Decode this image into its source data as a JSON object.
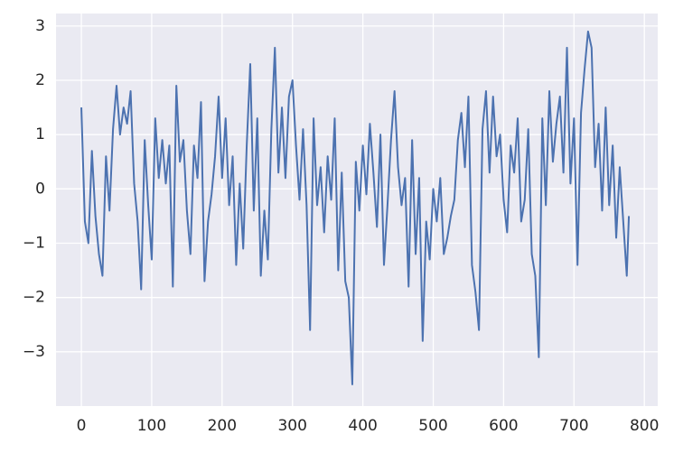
{
  "chart_data": {
    "type": "line",
    "x": [
      0,
      5,
      10,
      15,
      20,
      25,
      30,
      35,
      40,
      45,
      50,
      55,
      60,
      65,
      70,
      75,
      80,
      85,
      90,
      95,
      100,
      105,
      110,
      115,
      120,
      125,
      130,
      135,
      140,
      145,
      150,
      155,
      160,
      165,
      170,
      175,
      180,
      185,
      190,
      195,
      200,
      205,
      210,
      215,
      220,
      225,
      230,
      235,
      240,
      245,
      250,
      255,
      260,
      265,
      270,
      275,
      280,
      285,
      290,
      295,
      300,
      305,
      310,
      315,
      320,
      325,
      330,
      335,
      340,
      345,
      350,
      355,
      360,
      365,
      370,
      375,
      380,
      385,
      390,
      395,
      400,
      405,
      410,
      415,
      420,
      425,
      430,
      435,
      440,
      445,
      450,
      455,
      460,
      465,
      470,
      475,
      480,
      485,
      490,
      495,
      500,
      505,
      510,
      515,
      520,
      525,
      530,
      535,
      540,
      545,
      550,
      555,
      560,
      565,
      570,
      575,
      580,
      585,
      590,
      595,
      600,
      605,
      610,
      615,
      620,
      625,
      630,
      635,
      640,
      645,
      650,
      655,
      660,
      665,
      670,
      675,
      680,
      685,
      690,
      695,
      700,
      705,
      710,
      715,
      720,
      725,
      730,
      735,
      740,
      745,
      750,
      755,
      760,
      765,
      770,
      775,
      778
    ],
    "series": [
      {
        "color": "#4c72b0",
        "values": [
          1.5,
          -0.6,
          -1.0,
          0.7,
          -0.5,
          -1.2,
          -1.6,
          0.6,
          -0.4,
          1.1,
          1.9,
          1.0,
          1.5,
          1.2,
          1.8,
          0.1,
          -0.6,
          -1.85,
          0.9,
          -0.3,
          -1.3,
          1.3,
          0.2,
          0.9,
          0.1,
          0.8,
          -1.8,
          1.9,
          0.5,
          0.9,
          -0.4,
          -1.2,
          0.8,
          0.2,
          1.6,
          -1.7,
          -0.6,
          -0.1,
          0.6,
          1.7,
          0.2,
          1.3,
          -0.3,
          0.6,
          -1.4,
          0.1,
          -1.1,
          0.8,
          2.3,
          -0.4,
          1.3,
          -1.6,
          -0.4,
          -1.3,
          1.1,
          2.6,
          0.3,
          1.5,
          0.2,
          1.7,
          2.0,
          0.8,
          -0.2,
          1.1,
          -0.3,
          -2.6,
          1.3,
          -0.3,
          0.4,
          -0.8,
          0.6,
          -0.2,
          1.3,
          -1.5,
          0.3,
          -1.7,
          -2.0,
          -3.6,
          0.5,
          -0.4,
          0.8,
          -0.1,
          1.2,
          0.3,
          -0.7,
          1.0,
          -1.4,
          -0.3,
          0.9,
          1.8,
          0.4,
          -0.3,
          0.2,
          -1.8,
          0.9,
          -1.2,
          0.2,
          -2.8,
          -0.6,
          -1.3,
          0.0,
          -0.6,
          0.2,
          -1.2,
          -0.9,
          -0.5,
          -0.2,
          0.9,
          1.4,
          0.4,
          1.7,
          -1.4,
          -1.9,
          -2.6,
          1.1,
          1.8,
          0.3,
          1.7,
          0.6,
          1.0,
          -0.2,
          -0.8,
          0.8,
          0.3,
          1.3,
          -0.6,
          -0.2,
          1.1,
          -1.2,
          -1.6,
          -3.1,
          1.3,
          -0.3,
          1.8,
          0.5,
          1.2,
          1.7,
          0.3,
          2.6,
          0.1,
          1.3,
          -1.4,
          1.4,
          2.2,
          2.9,
          2.6,
          0.4,
          1.2,
          -0.4,
          1.5,
          -0.3,
          0.8,
          -0.9,
          0.4,
          -0.6,
          -1.6,
          -0.5
        ]
      }
    ],
    "xlim": [
      -36,
      819
    ],
    "ylim": [
      -4.0,
      3.23
    ],
    "xticks": [
      0,
      100,
      200,
      300,
      400,
      500,
      600,
      700,
      800
    ],
    "yticks": [
      {
        "value": -3,
        "label": "−3"
      },
      {
        "value": -2,
        "label": "−2"
      },
      {
        "value": -1,
        "label": "−1"
      },
      0,
      1,
      2,
      3
    ],
    "grid": true,
    "background": "#eaeaf2"
  }
}
